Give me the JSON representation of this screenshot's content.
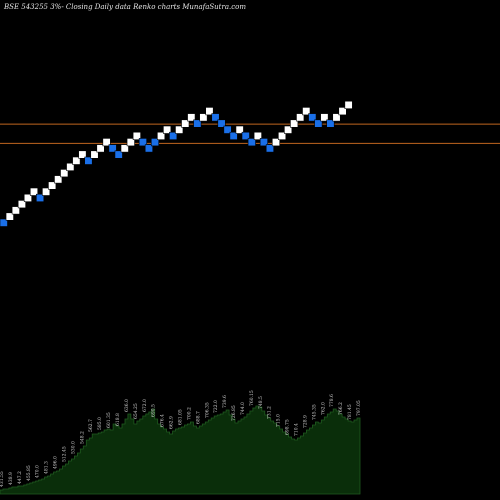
{
  "title": "BSE 543255 3%- Closing Daily data Renko charts MunafaSutra.com",
  "colors": {
    "background": "#000000",
    "brick_up": "#ffffff",
    "brick_down": "#1a6fe8",
    "reference_line": "#c0661f",
    "volume_fill": "#0a2e0a",
    "volume_top": "#1f5a1f",
    "volume_label": "#d0d0d0"
  },
  "chart_data": {
    "type": "renko",
    "bricks": [
      {
        "dir": "down",
        "level": 0
      },
      {
        "dir": "up",
        "level": 1
      },
      {
        "dir": "up",
        "level": 2
      },
      {
        "dir": "up",
        "level": 3
      },
      {
        "dir": "up",
        "level": 4
      },
      {
        "dir": "up",
        "level": 5
      },
      {
        "dir": "down",
        "level": 4
      },
      {
        "dir": "up",
        "level": 5
      },
      {
        "dir": "up",
        "level": 6
      },
      {
        "dir": "up",
        "level": 7
      },
      {
        "dir": "up",
        "level": 8
      },
      {
        "dir": "up",
        "level": 9
      },
      {
        "dir": "up",
        "level": 10
      },
      {
        "dir": "up",
        "level": 11
      },
      {
        "dir": "down",
        "level": 10
      },
      {
        "dir": "up",
        "level": 11
      },
      {
        "dir": "up",
        "level": 12
      },
      {
        "dir": "up",
        "level": 13
      },
      {
        "dir": "down",
        "level": 12
      },
      {
        "dir": "down",
        "level": 11
      },
      {
        "dir": "up",
        "level": 12
      },
      {
        "dir": "up",
        "level": 13
      },
      {
        "dir": "up",
        "level": 14
      },
      {
        "dir": "down",
        "level": 13
      },
      {
        "dir": "down",
        "level": 12
      },
      {
        "dir": "down",
        "level": 13
      },
      {
        "dir": "up",
        "level": 14
      },
      {
        "dir": "up",
        "level": 15
      },
      {
        "dir": "down",
        "level": 14
      },
      {
        "dir": "up",
        "level": 15
      },
      {
        "dir": "up",
        "level": 16
      },
      {
        "dir": "up",
        "level": 17
      },
      {
        "dir": "down",
        "level": 16
      },
      {
        "dir": "up",
        "level": 17
      },
      {
        "dir": "up",
        "level": 18
      },
      {
        "dir": "down",
        "level": 17
      },
      {
        "dir": "down",
        "level": 16
      },
      {
        "dir": "down",
        "level": 15
      },
      {
        "dir": "down",
        "level": 14
      },
      {
        "dir": "up",
        "level": 15
      },
      {
        "dir": "down",
        "level": 14
      },
      {
        "dir": "down",
        "level": 13
      },
      {
        "dir": "up",
        "level": 14
      },
      {
        "dir": "down",
        "level": 13
      },
      {
        "dir": "down",
        "level": 12
      },
      {
        "dir": "up",
        "level": 13
      },
      {
        "dir": "up",
        "level": 14
      },
      {
        "dir": "up",
        "level": 15
      },
      {
        "dir": "up",
        "level": 16
      },
      {
        "dir": "up",
        "level": 17
      },
      {
        "dir": "up",
        "level": 18
      },
      {
        "dir": "down",
        "level": 17
      },
      {
        "dir": "down",
        "level": 16
      },
      {
        "dir": "up",
        "level": 17
      },
      {
        "dir": "down",
        "level": 16
      },
      {
        "dir": "up",
        "level": 17
      },
      {
        "dir": "up",
        "level": 18
      },
      {
        "dir": "up",
        "level": 19
      }
    ],
    "reference_lines": [
      15.9,
      12.8
    ],
    "volume_levels": [
      4,
      5,
      5,
      6,
      7,
      7,
      8,
      8,
      9,
      10,
      11,
      12,
      13,
      14,
      15,
      17,
      18,
      20,
      22,
      23,
      25,
      28,
      30,
      33,
      35,
      38,
      41,
      45,
      48,
      54,
      56,
      60,
      60,
      61,
      62,
      64,
      65,
      64,
      70,
      68,
      66,
      70,
      75,
      80,
      75,
      70,
      73,
      75,
      78,
      80,
      82,
      85,
      75,
      70,
      67,
      65,
      62,
      60,
      63,
      65,
      66,
      67,
      69,
      70,
      72,
      68,
      66,
      68,
      70,
      72,
      74,
      76,
      78,
      79,
      80,
      82,
      84,
      79,
      75,
      71,
      73,
      75,
      77,
      80,
      83,
      86,
      88,
      87,
      83,
      79,
      76,
      73,
      71,
      68,
      65,
      62,
      60,
      57,
      55,
      54,
      56,
      58,
      61,
      64,
      66,
      69,
      72,
      71,
      74,
      77,
      80,
      82,
      85,
      83,
      80,
      77,
      75,
      73,
      72,
      74,
      76,
      76
    ],
    "volume_labels": [
      {
        "text": "431.55",
        "i": 1
      },
      {
        "text": "438.9",
        "i": 4
      },
      {
        "text": "447.2",
        "i": 7
      },
      {
        "text": "455.85",
        "i": 10
      },
      {
        "text": "470.0",
        "i": 13
      },
      {
        "text": "481.3",
        "i": 16
      },
      {
        "text": "496.0",
        "i": 19
      },
      {
        "text": "512.45",
        "i": 22
      },
      {
        "text": "530.0",
        "i": 25
      },
      {
        "text": "548.2",
        "i": 28
      },
      {
        "text": "562.7",
        "i": 31
      },
      {
        "text": "585.0",
        "i": 34
      },
      {
        "text": "601.35",
        "i": 37
      },
      {
        "text": "618.8",
        "i": 40
      },
      {
        "text": "636.0",
        "i": 43
      },
      {
        "text": "654.25",
        "i": 46
      },
      {
        "text": "672.0",
        "i": 49
      },
      {
        "text": "690.5",
        "i": 52
      },
      {
        "text": "676.4",
        "i": 55
      },
      {
        "text": "662.9",
        "i": 58
      },
      {
        "text": "681.05",
        "i": 61
      },
      {
        "text": "700.2",
        "i": 64
      },
      {
        "text": "688.7",
        "i": 67
      },
      {
        "text": "706.35",
        "i": 70
      },
      {
        "text": "722.0",
        "i": 73
      },
      {
        "text": "739.6",
        "i": 76
      },
      {
        "text": "726.85",
        "i": 79
      },
      {
        "text": "744.0",
        "i": 82
      },
      {
        "text": "760.15",
        "i": 85
      },
      {
        "text": "748.5",
        "i": 88
      },
      {
        "text": "731.2",
        "i": 91
      },
      {
        "text": "715.0",
        "i": 94
      },
      {
        "text": "698.75",
        "i": 97
      },
      {
        "text": "710.4",
        "i": 100
      },
      {
        "text": "728.9",
        "i": 103
      },
      {
        "text": "745.35",
        "i": 106
      },
      {
        "text": "762.0",
        "i": 109
      },
      {
        "text": "778.6",
        "i": 112
      },
      {
        "text": "766.2",
        "i": 115
      },
      {
        "text": "781.45",
        "i": 118
      },
      {
        "text": "797.05",
        "i": 121
      }
    ]
  }
}
